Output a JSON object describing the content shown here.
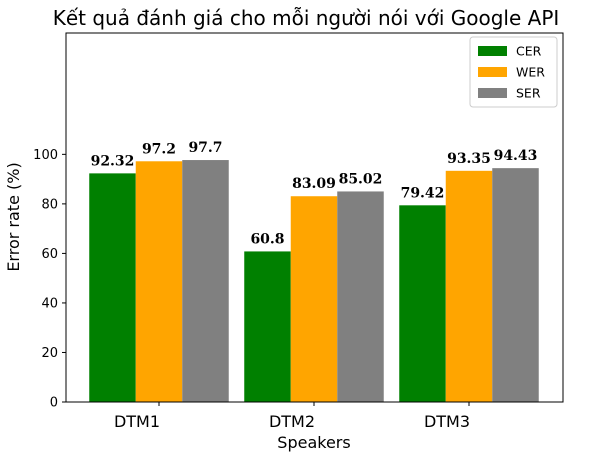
{
  "chart_data": {
    "type": "bar",
    "title": "Kết quả đánh giá cho mỗi người nói với Google API",
    "xlabel": "Speakers",
    "ylabel": "Error rate (%)",
    "categories": [
      "DTM1",
      "DTM2",
      "DTM3"
    ],
    "series": [
      {
        "name": "CER",
        "color": "#008000",
        "values": [
          92.32,
          60.8,
          79.42
        ],
        "labels": [
          "92.32",
          "60.8",
          "79.42"
        ]
      },
      {
        "name": "WER",
        "color": "#ffa500",
        "values": [
          97.2,
          83.09,
          93.35
        ],
        "labels": [
          "97.2",
          "83.09",
          "93.35"
        ]
      },
      {
        "name": "SER",
        "color": "#808080",
        "values": [
          97.7,
          85.02,
          94.43
        ],
        "labels": [
          "97.7",
          "85.02",
          "94.43"
        ]
      }
    ],
    "yticks": [
      0,
      20,
      40,
      60,
      80,
      100
    ],
    "ytick_labels": [
      "0",
      "20",
      "40",
      "60",
      "80",
      "100"
    ],
    "ylim": [
      0,
      149
    ],
    "grid": false,
    "legend_position": "top-right"
  }
}
